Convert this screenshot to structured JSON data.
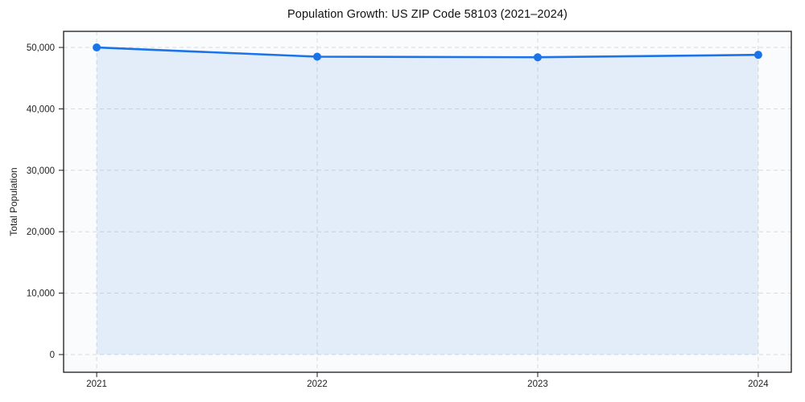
{
  "figure": {
    "background": "#ffffff"
  },
  "chart_data": {
    "type": "area",
    "title": "Population Growth: US ZIP Code 58103 (2021–2024)",
    "xlabel": "",
    "ylabel": "Total Population",
    "x": [
      2021,
      2022,
      2023,
      2024
    ],
    "xtick_labels": [
      "2021",
      "2022",
      "2023",
      "2024"
    ],
    "series": [
      {
        "name": "Total Population",
        "values": [
          50000,
          48500,
          48400,
          48800
        ]
      }
    ],
    "yticks": [
      0,
      10000,
      20000,
      30000,
      40000,
      50000
    ],
    "ytick_labels": [
      "0",
      "10,000",
      "20,000",
      "30,000",
      "40,000",
      "50,000"
    ],
    "xlim": [
      2020.85,
      2024.15
    ],
    "ylim": [
      -2880,
      52620
    ],
    "grid": true,
    "grid_style": "dashed",
    "legend": "none",
    "markers": true,
    "colors": {
      "line": "#1a73e8",
      "marker": "#1a73e8",
      "fill": "rgba(26,115,232,0.10)",
      "grid": "#d9d9d9",
      "spine": "#1a1a1a",
      "tick_text": "#222222",
      "title_text": "#111111",
      "plot_bg": "#fafbfc"
    }
  }
}
